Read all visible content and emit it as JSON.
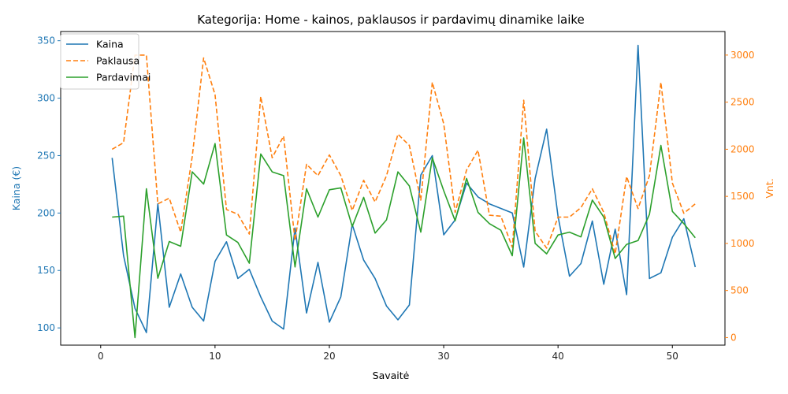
{
  "chart_data": {
    "type": "line",
    "title": "Kategorija: Home - kainos, paklausos ir pardavimų dinamike laike",
    "xlabel": "Savaitė",
    "ylabel_left": "Kaina (€)",
    "ylabel_right": "Vnt.",
    "xlim": [
      -3.5,
      54.6
    ],
    "ylim_left": [
      85,
      358
    ],
    "ylim_right": [
      -80,
      3250
    ],
    "x_ticks": [
      "0",
      "10",
      "20",
      "30",
      "40",
      "50"
    ],
    "y_left_ticks": [
      "100",
      "150",
      "200",
      "250",
      "300",
      "350"
    ],
    "y_right_ticks": [
      "0",
      "500",
      "1000",
      "1500",
      "2000",
      "2500",
      "3000"
    ],
    "legend_position": "upper-left",
    "grid": false,
    "colors": {
      "left_axis": "#1f77b4",
      "right_axis": "#ff7f0e"
    },
    "x": [
      1,
      2,
      3,
      4,
      5,
      6,
      7,
      8,
      9,
      10,
      11,
      12,
      13,
      14,
      15,
      16,
      17,
      18,
      19,
      20,
      21,
      22,
      23,
      24,
      25,
      26,
      27,
      28,
      29,
      30,
      31,
      32,
      33,
      34,
      35,
      36,
      37,
      38,
      39,
      40,
      41,
      42,
      43,
      44,
      45,
      46,
      47,
      48,
      49,
      50,
      51,
      52
    ],
    "series": [
      {
        "name": "Kaina",
        "axis": "left",
        "color": "#1f77b4",
        "dash": "solid",
        "values": [
          248,
          163,
          117,
          96,
          208,
          118,
          147,
          118,
          106,
          158,
          175,
          143,
          151,
          127,
          106,
          99,
          187,
          113,
          157,
          105,
          127,
          190,
          159,
          143,
          119,
          107,
          120,
          233,
          250,
          181,
          194,
          226,
          214,
          208,
          204,
          200,
          153,
          230,
          273,
          197,
          145,
          156,
          193,
          138,
          186,
          129,
          346,
          143,
          148,
          179,
          195,
          153
        ]
      },
      {
        "name": "Paklausa",
        "axis": "right",
        "color": "#ff7f0e",
        "dash": "dashed",
        "values": [
          2000,
          2070,
          3000,
          3000,
          1420,
          1480,
          1120,
          1920,
          2970,
          2580,
          1360,
          1310,
          1100,
          2560,
          1910,
          2140,
          1030,
          1840,
          1720,
          1940,
          1720,
          1350,
          1670,
          1440,
          1720,
          2160,
          2040,
          1460,
          2710,
          2270,
          1330,
          1780,
          1990,
          1300,
          1290,
          960,
          2520,
          1130,
          950,
          1280,
          1280,
          1380,
          1580,
          1330,
          890,
          1710,
          1370,
          1720,
          2710,
          1640,
          1320,
          1420
        ]
      },
      {
        "name": "Pardavimai",
        "axis": "right",
        "color": "#2ca02c",
        "dash": "solid",
        "values": [
          1280,
          1290,
          0,
          1580,
          630,
          1020,
          970,
          1760,
          1630,
          2060,
          1090,
          1010,
          790,
          1950,
          1760,
          1720,
          750,
          1580,
          1280,
          1570,
          1590,
          1180,
          1490,
          1110,
          1250,
          1760,
          1610,
          1120,
          1910,
          1560,
          1240,
          1690,
          1330,
          1210,
          1140,
          870,
          2120,
          1000,
          890,
          1090,
          1120,
          1070,
          1460,
          1280,
          840,
          990,
          1030,
          1310,
          2040,
          1340,
          1210,
          1060
        ]
      }
    ]
  }
}
